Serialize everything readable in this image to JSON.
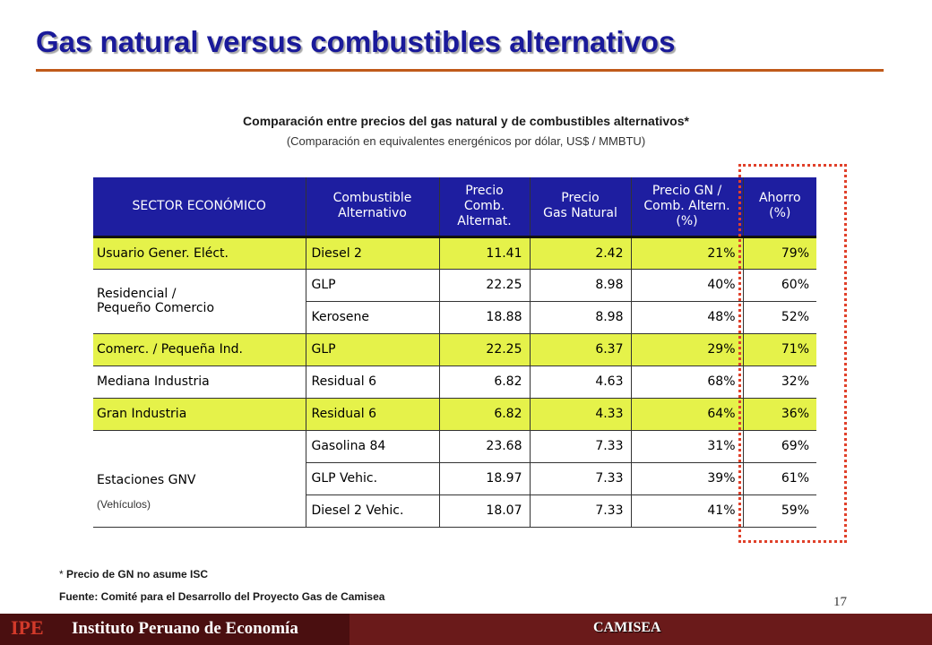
{
  "slide": {
    "title": "Gas natural versus combustibles alternativos",
    "page_number": "17"
  },
  "chart_heading": {
    "title": "Comparación entre precios del gas natural y de combustibles alternativos*",
    "subtitle": "(Comparación en equivalentes energénicos por dólar, US$ / MMBTU)"
  },
  "table": {
    "headers": {
      "sector": "SECTOR ECONÓMICO",
      "fuel_l1": "Combustible",
      "fuel_l2": "Alternativo",
      "price_alt_l1": "Precio",
      "price_alt_l2": "Comb.",
      "price_alt_l3": "Alternat.",
      "price_gn_l1": "Precio",
      "price_gn_l2": "Gas Natural",
      "ratio_l1": "Precio GN /",
      "ratio_l2": "Comb. Altern.",
      "ratio_l3": "(%)",
      "saving_l1": "Ahorro",
      "saving_l2": "(%)"
    },
    "sectors": {
      "usuario": "Usuario Gener. Eléct.",
      "residencial_l1": "Residencial /",
      "residencial_l2": "Pequeño Comercio",
      "comerc": "Comerc. / Pequeña Ind.",
      "mediana": "Mediana Industria",
      "gran": "Gran Industria",
      "estaciones": "Estaciones GNV",
      "estaciones_note": "(Vehículos)"
    },
    "rows": [
      {
        "fuel": "Diesel 2",
        "price_alt": "11.41",
        "price_gn": "2.42",
        "ratio": "21%",
        "saving": "79%"
      },
      {
        "fuel": "GLP",
        "price_alt": "22.25",
        "price_gn": "8.98",
        "ratio": "40%",
        "saving": "60%"
      },
      {
        "fuel": "Kerosene",
        "price_alt": "18.88",
        "price_gn": "8.98",
        "ratio": "48%",
        "saving": "52%"
      },
      {
        "fuel": "GLP",
        "price_alt": "22.25",
        "price_gn": "6.37",
        "ratio": "29%",
        "saving": "71%"
      },
      {
        "fuel": "Residual 6",
        "price_alt": "6.82",
        "price_gn": "4.63",
        "ratio": "68%",
        "saving": "32%"
      },
      {
        "fuel": "Residual 6",
        "price_alt": "6.82",
        "price_gn": "4.33",
        "ratio": "64%",
        "saving": "36%"
      },
      {
        "fuel": "Gasolina 84",
        "price_alt": "23.68",
        "price_gn": "7.33",
        "ratio": "31%",
        "saving": "69%"
      },
      {
        "fuel": "GLP Vehic.",
        "price_alt": "18.97",
        "price_gn": "7.33",
        "ratio": "39%",
        "saving": "61%"
      },
      {
        "fuel": "Diesel 2 Vehic.",
        "price_alt": "18.07",
        "price_gn": "7.33",
        "ratio": "41%",
        "saving": "59%"
      }
    ],
    "highlight_color": "#e5f24a",
    "header_color": "#1e1ea0"
  },
  "footnotes": {
    "asterisk": "*",
    "note": "Precio de GN no asume ISC",
    "source": "Fuente: Comité para el Desarrollo del Proyecto Gas de Camisea"
  },
  "footer": {
    "logo": "IPE",
    "organization": "Instituto Peruano de Economía",
    "project": "CAMISEA"
  }
}
